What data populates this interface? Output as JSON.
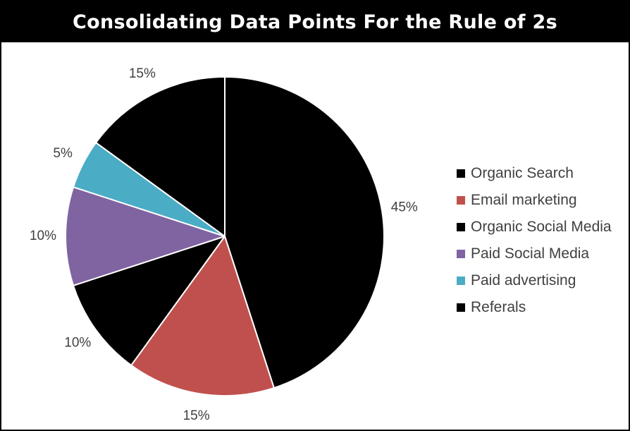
{
  "title": "Consolidating Data Points For the Rule of 2s",
  "chart_data": {
    "type": "pie",
    "title": "Consolidating Data Points For the Rule of 2s",
    "legend_position": "right",
    "slices": [
      {
        "label": "Organic Search",
        "value": 45,
        "display": "45%",
        "color": "#000000"
      },
      {
        "label": "Email marketing",
        "value": 15,
        "display": "15%",
        "color": "#C0504D"
      },
      {
        "label": "Organic Social Media",
        "value": 10,
        "display": "10%",
        "color": "#000000"
      },
      {
        "label": "Paid Social Media",
        "value": 10,
        "display": "10%",
        "color": "#8064A2"
      },
      {
        "label": "Paid advertising",
        "value": 5,
        "display": "5%",
        "color": "#4BACC6"
      },
      {
        "label": "Referals",
        "value": 15,
        "display": "15%",
        "color": "#000000"
      }
    ]
  }
}
